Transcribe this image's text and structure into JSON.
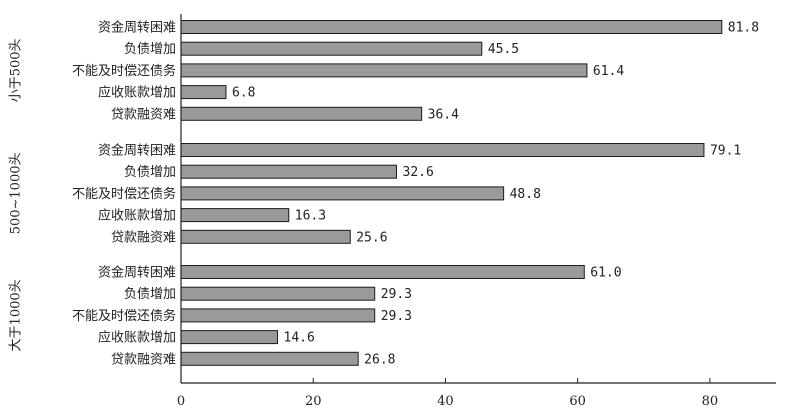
{
  "chart_data": {
    "type": "bar",
    "orientation": "horizontal",
    "title": "",
    "xlabel": "",
    "ylabel": "",
    "xlim": [
      0,
      90
    ],
    "x_ticks": [
      "0",
      "20",
      "40",
      "60",
      "80"
    ],
    "grid": false,
    "groups": [
      {
        "name": "小于500头",
        "categories": [
          "资金周转困难",
          "负债增加",
          "不能及时偿还债务",
          "应收账款增加",
          "贷款融资难"
        ],
        "values": [
          81.8,
          45.5,
          61.4,
          6.8,
          36.4
        ],
        "value_labels": [
          "81.8",
          "45.5",
          "61.4",
          "6.8",
          "36.4"
        ]
      },
      {
        "name": "500~1000头",
        "categories": [
          "资金周转困难",
          "负债增加",
          "不能及时偿还债务",
          "应收账款增加",
          "贷款融资难"
        ],
        "values": [
          79.1,
          32.6,
          48.8,
          16.3,
          25.6
        ],
        "value_labels": [
          "79.1",
          "32.6",
          "48.8",
          "16.3",
          "25.6"
        ]
      },
      {
        "name": "大于1000头",
        "categories": [
          "资金周转困难",
          "负债增加",
          "不能及时偿还债务",
          "应收账款增加",
          "贷款融资难"
        ],
        "values": [
          61.0,
          29.3,
          29.3,
          14.6,
          26.8
        ],
        "value_labels": [
          "61.0",
          "29.3",
          "29.3",
          "14.6",
          "26.8"
        ]
      }
    ],
    "colors": {
      "bar_fill": "#9a9a9a",
      "bar_stroke": "#1c1c1c"
    }
  }
}
